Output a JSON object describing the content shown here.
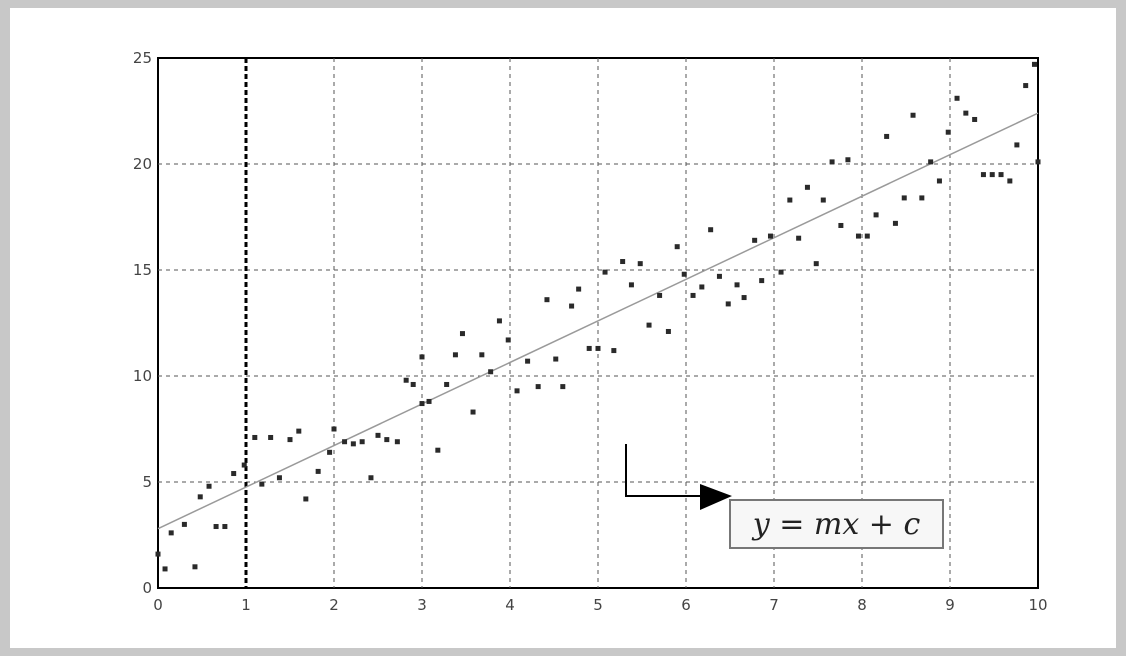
{
  "chart_data": {
    "type": "scatter",
    "title": "",
    "xlabel": "",
    "ylabel": "",
    "xlim": [
      0,
      10
    ],
    "ylim": [
      0,
      25
    ],
    "x_ticks": [
      0,
      1,
      2,
      3,
      4,
      5,
      6,
      7,
      8,
      9,
      10
    ],
    "y_ticks": [
      0,
      5,
      10,
      15,
      20,
      25
    ],
    "grid": true,
    "marker_vline_x": 1,
    "fit_line": {
      "x": [
        0,
        10
      ],
      "y": [
        2.8,
        22.4
      ]
    },
    "annotation": "y = mx + c",
    "points": [
      [
        0.0,
        1.6
      ],
      [
        0.08,
        0.9
      ],
      [
        0.15,
        2.6
      ],
      [
        0.3,
        3.0
      ],
      [
        0.42,
        1.0
      ],
      [
        0.48,
        4.3
      ],
      [
        0.58,
        4.8
      ],
      [
        0.66,
        2.9
      ],
      [
        0.76,
        2.9
      ],
      [
        0.86,
        5.4
      ],
      [
        0.98,
        5.8
      ],
      [
        1.1,
        7.1
      ],
      [
        1.18,
        4.9
      ],
      [
        1.28,
        7.1
      ],
      [
        1.38,
        5.2
      ],
      [
        1.5,
        7.0
      ],
      [
        1.6,
        7.4
      ],
      [
        1.68,
        4.2
      ],
      [
        1.82,
        5.5
      ],
      [
        1.95,
        6.4
      ],
      [
        2.0,
        7.5
      ],
      [
        2.12,
        6.9
      ],
      [
        2.22,
        6.8
      ],
      [
        2.32,
        6.9
      ],
      [
        2.42,
        5.2
      ],
      [
        2.5,
        7.2
      ],
      [
        2.6,
        7.0
      ],
      [
        2.72,
        6.9
      ],
      [
        2.82,
        9.8
      ],
      [
        2.9,
        9.6
      ],
      [
        3.0,
        10.9
      ],
      [
        3.0,
        8.7
      ],
      [
        3.08,
        8.8
      ],
      [
        3.18,
        6.5
      ],
      [
        3.28,
        9.6
      ],
      [
        3.38,
        11.0
      ],
      [
        3.46,
        12.0
      ],
      [
        3.58,
        8.3
      ],
      [
        3.68,
        11.0
      ],
      [
        3.78,
        10.2
      ],
      [
        3.88,
        12.6
      ],
      [
        3.98,
        11.7
      ],
      [
        4.08,
        9.3
      ],
      [
        4.2,
        10.7
      ],
      [
        4.32,
        9.5
      ],
      [
        4.42,
        13.6
      ],
      [
        4.52,
        10.8
      ],
      [
        4.6,
        9.5
      ],
      [
        4.7,
        13.3
      ],
      [
        4.78,
        14.1
      ],
      [
        4.9,
        11.3
      ],
      [
        5.0,
        11.3
      ],
      [
        5.08,
        14.9
      ],
      [
        5.18,
        11.2
      ],
      [
        5.28,
        15.4
      ],
      [
        5.38,
        14.3
      ],
      [
        5.48,
        15.3
      ],
      [
        5.58,
        12.4
      ],
      [
        5.7,
        13.8
      ],
      [
        5.8,
        12.1
      ],
      [
        5.9,
        16.1
      ],
      [
        5.98,
        14.8
      ],
      [
        6.08,
        13.8
      ],
      [
        6.18,
        14.2
      ],
      [
        6.28,
        16.9
      ],
      [
        6.38,
        14.7
      ],
      [
        6.48,
        13.4
      ],
      [
        6.58,
        14.3
      ],
      [
        6.66,
        13.7
      ],
      [
        6.78,
        16.4
      ],
      [
        6.86,
        14.5
      ],
      [
        6.96,
        16.6
      ],
      [
        7.08,
        14.9
      ],
      [
        7.18,
        18.3
      ],
      [
        7.28,
        16.5
      ],
      [
        7.38,
        18.9
      ],
      [
        7.48,
        15.3
      ],
      [
        7.56,
        18.3
      ],
      [
        7.66,
        20.1
      ],
      [
        7.76,
        17.1
      ],
      [
        7.84,
        20.2
      ],
      [
        7.96,
        16.6
      ],
      [
        8.06,
        16.6
      ],
      [
        8.16,
        17.6
      ],
      [
        8.28,
        21.3
      ],
      [
        8.38,
        17.2
      ],
      [
        8.48,
        18.4
      ],
      [
        8.58,
        22.3
      ],
      [
        8.68,
        18.4
      ],
      [
        8.78,
        20.1
      ],
      [
        8.88,
        19.2
      ],
      [
        8.98,
        21.5
      ],
      [
        9.08,
        23.1
      ],
      [
        9.18,
        22.4
      ],
      [
        9.28,
        22.1
      ],
      [
        9.38,
        19.5
      ],
      [
        9.48,
        19.5
      ],
      [
        9.58,
        19.5
      ],
      [
        9.68,
        19.2
      ],
      [
        9.76,
        20.9
      ],
      [
        9.86,
        23.7
      ],
      [
        9.96,
        24.7
      ],
      [
        10.0,
        20.1
      ]
    ],
    "colors": {
      "points": "#2a2a2a",
      "fit_line": "#9a9a9a",
      "grid": "#555555"
    }
  }
}
